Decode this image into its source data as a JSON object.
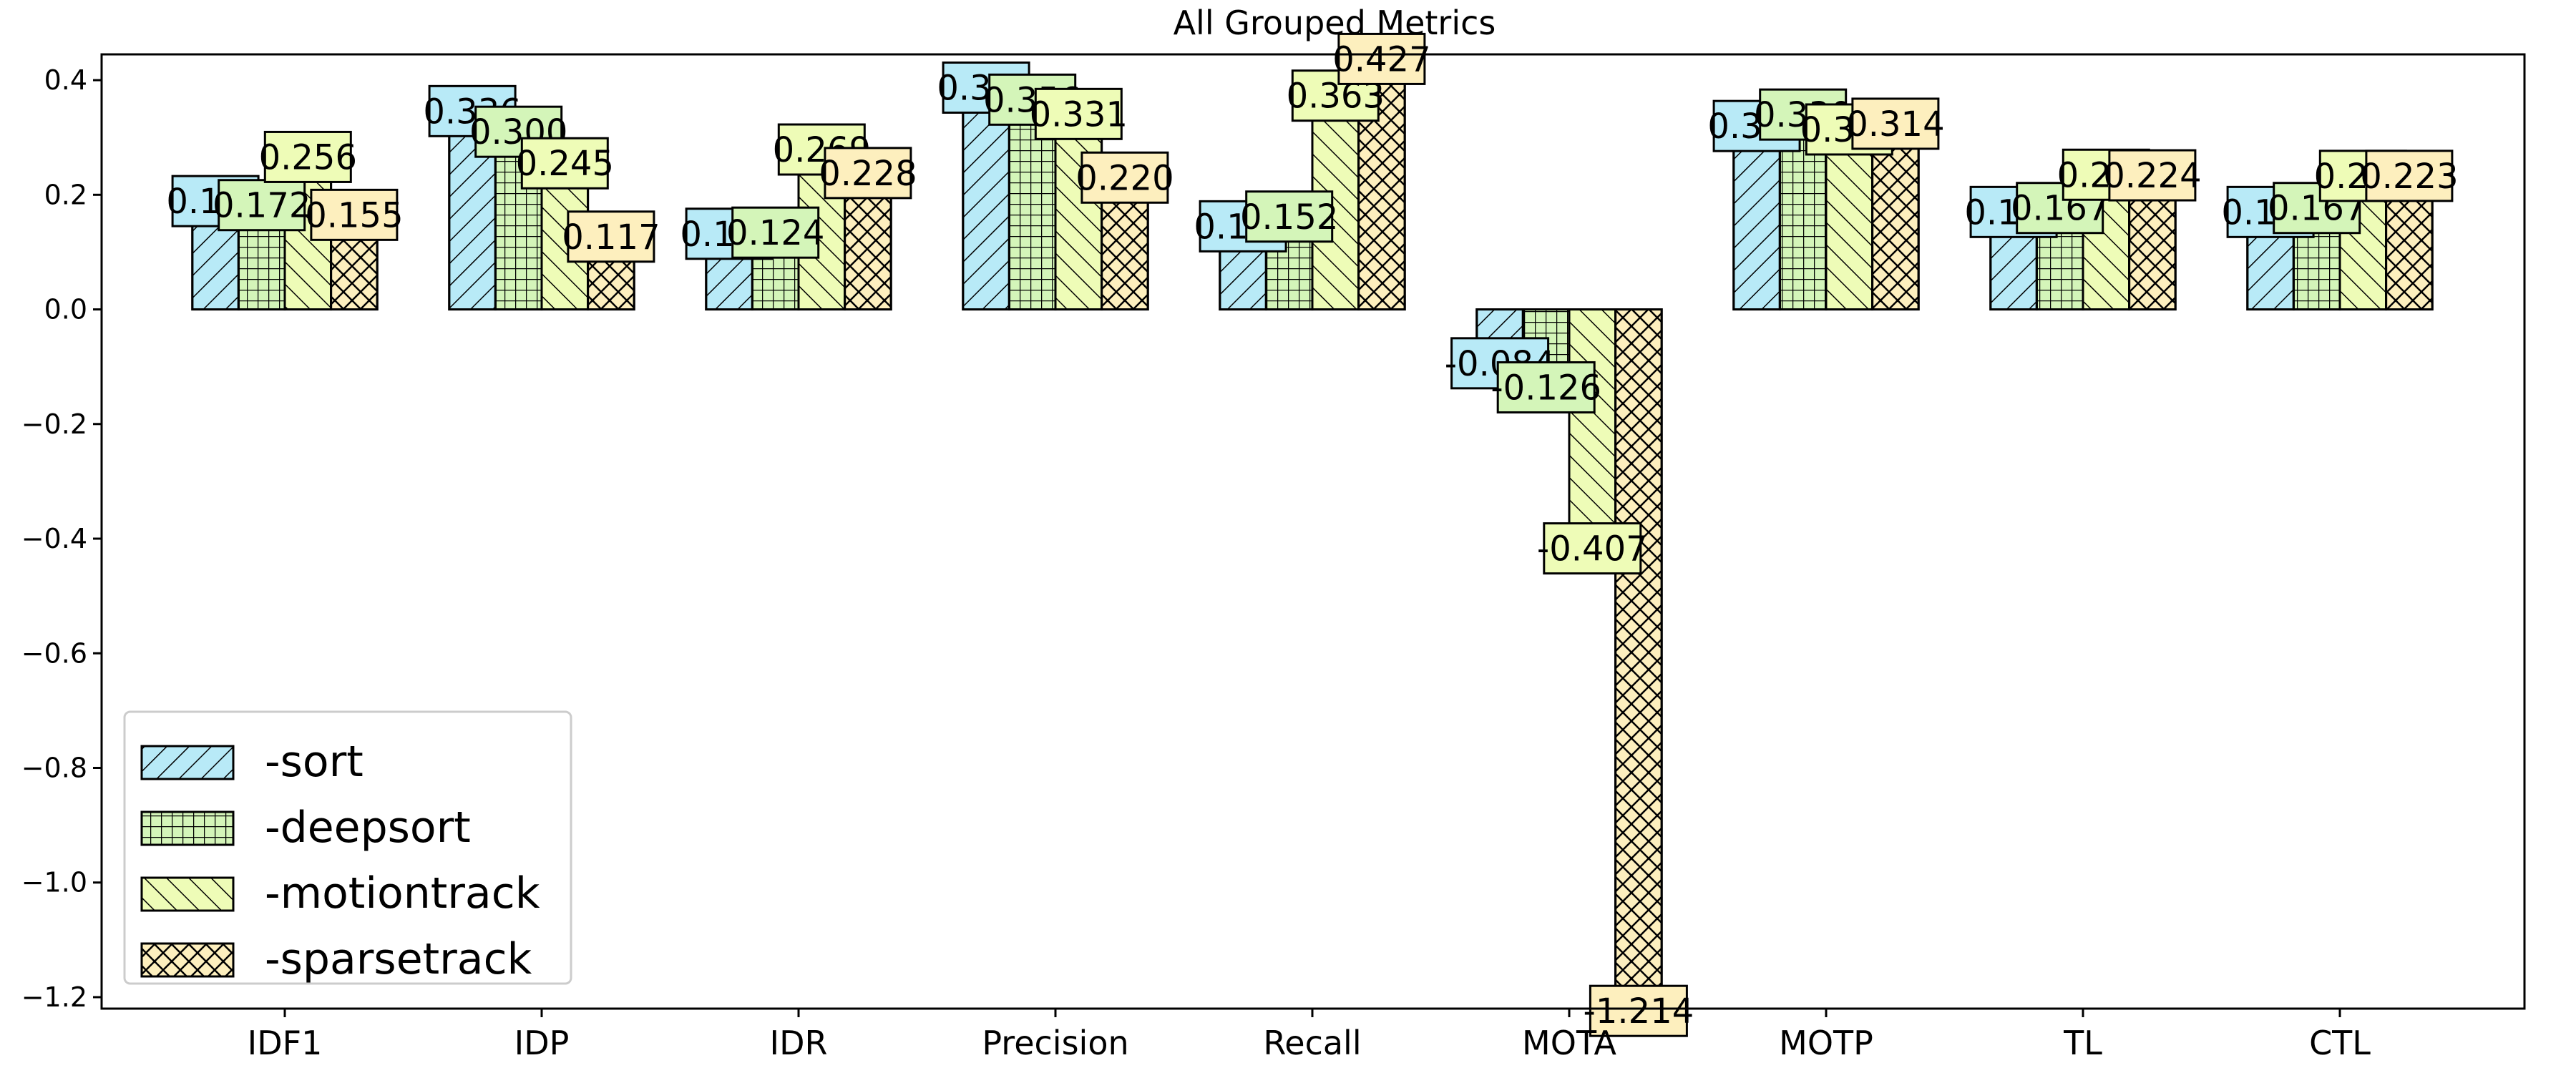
{
  "chart_data": {
    "type": "bar",
    "title": "All Grouped Metrics",
    "xlabel": "",
    "ylabel": "",
    "categories": [
      "IDF1",
      "IDP",
      "IDR",
      "Precision",
      "Recall",
      "MOTA",
      "MOTP",
      "TL",
      "CTL"
    ],
    "ylim": [
      -1.22,
      0.445
    ],
    "yticks": [
      0.4,
      0.2,
      0.0,
      -0.2,
      -0.4,
      -0.6,
      -0.8,
      -1.0,
      -1.2
    ],
    "ytick_labels": [
      "0.4",
      "0.2",
      "0.0",
      "−0.2",
      "−0.4",
      "−0.6",
      "−0.8",
      "−1.0",
      "−1.2"
    ],
    "grid": false,
    "legend_position": "lower-left",
    "series": [
      {
        "name": "-sort",
        "color": "#b8eaf7",
        "hatch": "diagonal-right",
        "values": [
          0.179,
          0.336,
          0.122,
          0.377,
          0.135,
          -0.084,
          0.31,
          0.16,
          0.16
        ],
        "labels": [
          "0.179",
          "0.336",
          "0.122",
          "0.377",
          "0.135",
          "-0.084",
          "0.310",
          "0.160",
          "0.160"
        ]
      },
      {
        "name": "-deepsort",
        "color": "#d4f5b9",
        "hatch": "grid",
        "values": [
          0.172,
          0.3,
          0.124,
          0.356,
          0.152,
          -0.126,
          0.33,
          0.167,
          0.167
        ],
        "labels": [
          "0.172",
          "0.300",
          "0.124",
          "0.356",
          "0.152",
          "-0.126",
          "0.330",
          "0.167",
          "0.167"
        ]
      },
      {
        "name": "-motiontrack",
        "color": "#eefcb7",
        "hatch": "diagonal-left",
        "values": [
          0.256,
          0.245,
          0.269,
          0.331,
          0.363,
          -0.407,
          0.304,
          0.225,
          0.223
        ],
        "labels": [
          "0.256",
          "0.245",
          "0.269",
          "0.331",
          "0.363",
          "-0.407",
          "0.304",
          "0.225",
          "0.223"
        ]
      },
      {
        "name": "-sparsetrack",
        "color": "#fdefbe",
        "hatch": "crosshatch",
        "values": [
          0.155,
          0.117,
          0.228,
          0.22,
          0.427,
          -1.214,
          0.314,
          0.224,
          0.223
        ],
        "labels": [
          "0.155",
          "0.117",
          "0.228",
          "0.220",
          "0.427",
          "-1.214",
          "0.314",
          "0.224",
          "0.223"
        ]
      }
    ]
  }
}
